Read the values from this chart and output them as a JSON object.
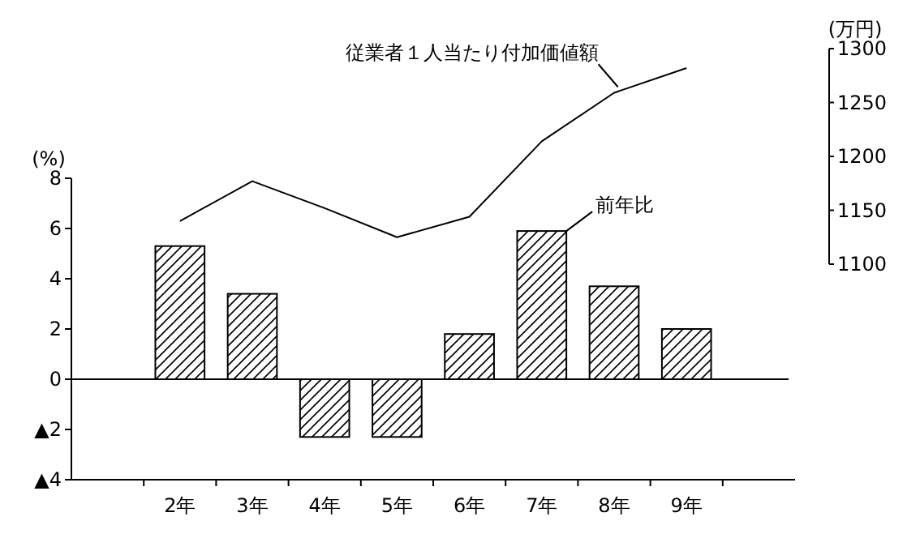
{
  "chart_data": [
    {
      "type": "bar",
      "categories": [
        null,
        "2年",
        "3年",
        "4年",
        "5年",
        "6年",
        "7年",
        "8年",
        "9年",
        null
      ],
      "series": [
        {
          "name": "前年比",
          "color": "#ffffff",
          "values": [
            null,
            5.3,
            3.4,
            -2.3,
            -2.3,
            1.8,
            5.9,
            3.7,
            2.0,
            null
          ]
        }
      ],
      "ylabel": "(%)",
      "ylim": [
        -4,
        8
      ],
      "yticks": [
        {
          "value": -4,
          "label": "▲4"
        },
        {
          "value": -2,
          "label": "▲2"
        },
        0,
        2,
        4,
        6,
        8
      ],
      "ref_lines": [
        {
          "axis": "y",
          "value": 0,
          "color": "#000000"
        }
      ],
      "legend": false
    },
    {
      "type": "line",
      "categories": [
        null,
        null,
        null,
        null,
        null,
        null,
        null,
        null,
        null,
        null
      ],
      "series": [
        {
          "name": "従業者１人当たり付加価値額",
          "color": "#000000",
          "values": [
            null,
            1140,
            1177,
            1152,
            1125,
            1144,
            1214,
            1259,
            1282,
            null
          ]
        }
      ],
      "ylabel": "(万円)",
      "ylim": [
        1100,
        1300
      ],
      "yticks": [
        1100,
        1150,
        1200,
        1250,
        1300
      ],
      "tick_labels": "y",
      "legend": false,
      "marker": "none",
      "line_style": "solid"
    }
  ]
}
